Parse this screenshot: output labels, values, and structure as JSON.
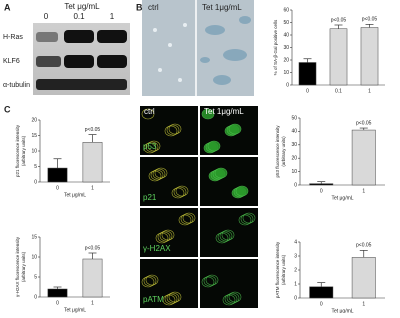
{
  "panel_labels": [
    "A",
    "B",
    "C"
  ],
  "blot": {
    "header": "Tet μg/mL",
    "lanes": [
      "0",
      "0.1",
      "1"
    ],
    "rows": [
      "H-Ras",
      "KLF6",
      "α-tubulin"
    ]
  },
  "image_b": {
    "columns": [
      "ctrl",
      "Tet 1μg/mL"
    ]
  },
  "image_c": {
    "columns": [
      "ctrl",
      "Tet 1μg/mL"
    ],
    "rows": [
      "p53",
      "p21",
      "γ-H2AX",
      "pATM"
    ]
  },
  "chart_data": [
    {
      "type": "bar",
      "ylabel": [
        "% of SA-β-Gal positive cells"
      ],
      "categories": [
        "0",
        "0.1",
        "1"
      ],
      "values": [
        18,
        45,
        46
      ],
      "errors": [
        3,
        3,
        2.5
      ],
      "colors": [
        "#000000",
        "#d9d9d9",
        "#d9d9d9"
      ],
      "ylim": [
        0,
        60
      ],
      "yticks": [
        0,
        10,
        20,
        30,
        40,
        50,
        60
      ],
      "annotations": [
        "p<0.05",
        "p<0.05"
      ]
    },
    {
      "type": "bar",
      "ylabel": [
        "p21 fluorescence intensity",
        "(arbitrary units)"
      ],
      "xlabel": "Tet μg/mL",
      "categories": [
        "0",
        "1"
      ],
      "values": [
        4.5,
        12.8
      ],
      "errors": [
        3,
        2.5
      ],
      "colors": [
        "#000000",
        "#d9d9d9"
      ],
      "ylim": [
        0,
        20
      ],
      "yticks": [
        0,
        5,
        10,
        15,
        20
      ],
      "annotations": [
        "p<0.05"
      ]
    },
    {
      "type": "bar",
      "ylabel": [
        "γ-H2AX fluorescence intensity",
        "(arbitrary units)"
      ],
      "xlabel": "Tet μg/mL",
      "categories": [
        "0",
        "1"
      ],
      "values": [
        2,
        9.5
      ],
      "errors": [
        0.5,
        1.5
      ],
      "colors": [
        "#000000",
        "#d9d9d9"
      ],
      "ylim": [
        0,
        15
      ],
      "yticks": [
        0,
        5,
        10,
        15
      ],
      "annotations": [
        "p<0.05"
      ]
    },
    {
      "type": "bar",
      "ylabel": [
        "p53 fluorescence intensity",
        "(arbitrary units)"
      ],
      "xlabel": "Tet μg/mL",
      "categories": [
        "0",
        "1"
      ],
      "values": [
        1,
        41
      ],
      "errors": [
        1.5,
        1.5
      ],
      "colors": [
        "#000000",
        "#d9d9d9"
      ],
      "ylim": [
        0,
        50
      ],
      "yticks": [
        0,
        10,
        20,
        30,
        40,
        50
      ],
      "annotations": [
        "p<0.05"
      ]
    },
    {
      "type": "bar",
      "ylabel": [
        "pATM fluorescence intensity",
        "(arbitrary units)"
      ],
      "xlabel": "Tet μg/mL",
      "categories": [
        "0",
        "1"
      ],
      "values": [
        0.8,
        2.9
      ],
      "errors": [
        0.3,
        0.5
      ],
      "colors": [
        "#000000",
        "#d9d9d9"
      ],
      "ylim": [
        0,
        4
      ],
      "yticks": [
        0,
        1,
        2,
        3,
        4
      ],
      "annotations": [
        "p<0.05"
      ]
    }
  ]
}
